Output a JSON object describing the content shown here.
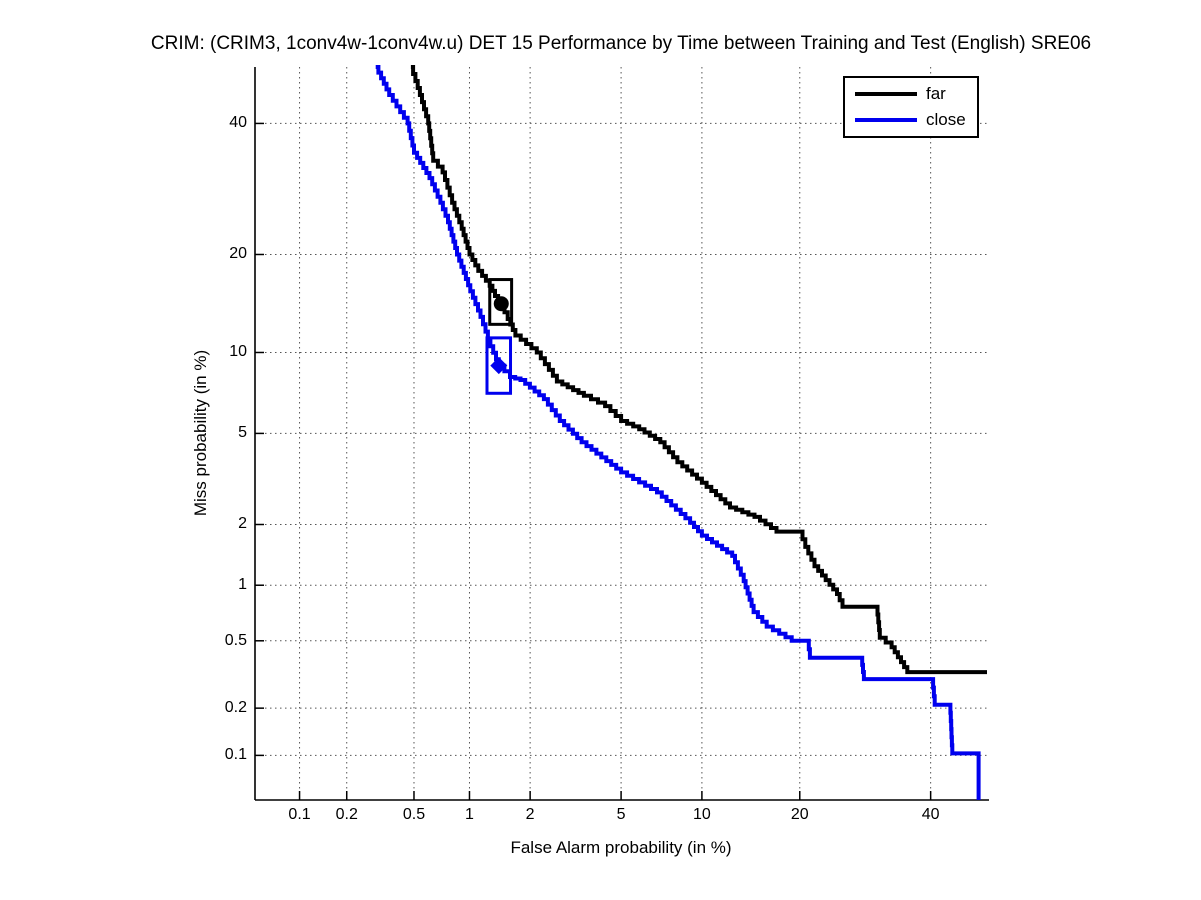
{
  "title": "CRIM: (CRIM3, 1conv4w-1conv4w.u) DET 15 Performance by Time between Training and Test (English) SRE06",
  "colors": {
    "far": "#000000",
    "close": "#0000ee",
    "axis": "#000000",
    "grid": "#555555",
    "background": "#ffffff"
  },
  "axes": {
    "x": {
      "label": "False Alarm probability (in %)",
      "tick_labels": [
        "0.1",
        "0.2",
        "0.5",
        "1",
        "2",
        "5",
        "10",
        "20",
        "40"
      ],
      "tick_values": [
        0.1,
        0.2,
        0.5,
        1,
        2,
        5,
        10,
        20,
        40
      ],
      "range_pct": [
        0.05,
        50
      ],
      "scale": "probit"
    },
    "y": {
      "label": "Miss probability (in %)",
      "tick_labels": [
        "40",
        "20",
        "10",
        "5",
        "2",
        "1",
        "0.5",
        "0.2",
        "0.1"
      ],
      "tick_values": [
        40,
        20,
        10,
        5,
        2,
        1,
        0.5,
        0.2,
        0.1
      ],
      "range_pct": [
        0.05,
        50
      ],
      "scale": "probit"
    }
  },
  "legend": {
    "position": "top-right",
    "entries": [
      {
        "label": "far",
        "color": "#000000"
      },
      {
        "label": "close",
        "color": "#0000ee"
      }
    ]
  },
  "chart_data": {
    "type": "line",
    "subtype": "DET-curve-staircase",
    "title": "CRIM: (CRIM3, 1conv4w-1conv4w.u) DET 15 Performance by Time between Training and Test (English) SRE06",
    "xlabel": "False Alarm probability (in %)",
    "ylabel": "Miss probability (in %)",
    "x_range_pct": [
      0.05,
      50
    ],
    "y_range_pct": [
      0.05,
      50
    ],
    "grid": "dotted",
    "legend_position": "top-right",
    "series": [
      {
        "name": "far",
        "color": "#000000",
        "points_fa_miss_pct": [
          [
            0.48,
            50
          ],
          [
            0.54,
            45
          ],
          [
            0.6,
            40
          ],
          [
            0.64,
            33.7
          ],
          [
            0.72,
            31.8
          ],
          [
            0.81,
            27.1
          ],
          [
            0.91,
            23.4
          ],
          [
            1.0,
            20
          ],
          [
            1.11,
            18
          ],
          [
            1.27,
            16.3
          ],
          [
            1.35,
            15.2
          ],
          [
            1.45,
            14.2
          ],
          [
            1.56,
            12.9
          ],
          [
            1.7,
            11.4
          ],
          [
            2.15,
            10
          ],
          [
            2.66,
            7.9
          ],
          [
            3.5,
            7.0
          ],
          [
            4.3,
            6.4
          ],
          [
            5.0,
            5.6
          ],
          [
            5.9,
            5.2
          ],
          [
            7.1,
            4.6
          ],
          [
            8.2,
            3.8
          ],
          [
            10,
            3.1
          ],
          [
            12.4,
            2.4
          ],
          [
            14.8,
            2.17
          ],
          [
            17.2,
            1.85
          ],
          [
            20,
            1.85
          ],
          [
            20.7,
            1.56
          ],
          [
            21.9,
            1.25
          ],
          [
            25,
            0.9
          ],
          [
            25.8,
            0.77
          ],
          [
            31,
            0.77
          ],
          [
            31.5,
            0.52
          ],
          [
            33.4,
            0.46
          ],
          [
            36,
            0.33
          ],
          [
            50,
            0.33
          ]
        ]
      },
      {
        "name": "close",
        "color": "#0000ee",
        "points_fa_miss_pct": [
          [
            0.3,
            50
          ],
          [
            0.36,
            45
          ],
          [
            0.46,
            40
          ],
          [
            0.5,
            35
          ],
          [
            0.61,
            30.9
          ],
          [
            0.7,
            27.1
          ],
          [
            0.77,
            24.3
          ],
          [
            0.86,
            20
          ],
          [
            1.01,
            15.7
          ],
          [
            1.14,
            13.1
          ],
          [
            1.28,
            10.5
          ],
          [
            1.41,
            9.0
          ],
          [
            1.6,
            8.2
          ],
          [
            1.8,
            8.0
          ],
          [
            2.32,
            6.8
          ],
          [
            2.74,
            5.6
          ],
          [
            3.42,
            4.6
          ],
          [
            5.0,
            3.44
          ],
          [
            6.9,
            2.81
          ],
          [
            9.1,
            2.04
          ],
          [
            10,
            1.77
          ],
          [
            12.6,
            1.41
          ],
          [
            13.7,
            1.05
          ],
          [
            14.7,
            0.72
          ],
          [
            16.1,
            0.6
          ],
          [
            19,
            0.5
          ],
          [
            21,
            0.5
          ],
          [
            21.3,
            0.4
          ],
          [
            28.6,
            0.4
          ],
          [
            29,
            0.3
          ],
          [
            40.3,
            0.3
          ],
          [
            40.7,
            0.21
          ],
          [
            43.4,
            0.21
          ],
          [
            43.8,
            0.103
          ],
          [
            48.5,
            0.103
          ],
          [
            48.5,
            0.05
          ]
        ]
      }
    ],
    "operating_point_markers": [
      {
        "series": "far",
        "shape": "filled-circle",
        "fa_pct": 1.45,
        "miss_pct": 14.4,
        "box_fa_pct": [
          1.27,
          1.63
        ],
        "box_miss_pct": [
          12.4,
          17.0
        ],
        "color": "#000000"
      },
      {
        "series": "close",
        "shape": "filled-diamond",
        "fa_pct": 1.41,
        "miss_pct": 9.0,
        "box_fa_pct": [
          1.23,
          1.61
        ],
        "box_miss_pct": [
          7.15,
          11.2
        ],
        "color": "#0000ee"
      }
    ]
  }
}
